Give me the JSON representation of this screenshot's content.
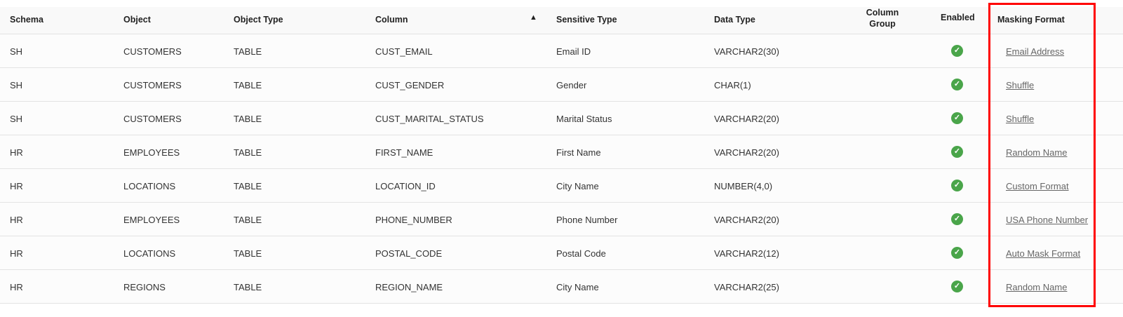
{
  "headers": {
    "schema": "Schema",
    "object": "Object",
    "object_type": "Object Type",
    "column": "Column",
    "sensitive_type": "Sensitive Type",
    "data_type": "Data Type",
    "column_group_1": "Column",
    "column_group_2": "Group",
    "enabled": "Enabled",
    "masking_format": "Masking Format"
  },
  "sort": {
    "column": "Column",
    "direction": "ascending",
    "icon": "▲"
  },
  "enabled_icon": "✓",
  "highlight_color": "#ff0000",
  "rows": [
    {
      "schema": "SH",
      "object": "CUSTOMERS",
      "object_type": "TABLE",
      "column": "CUST_EMAIL",
      "sensitive_type": "Email ID",
      "data_type": "VARCHAR2(30)",
      "column_group": "",
      "enabled": true,
      "masking_format": "Email Address"
    },
    {
      "schema": "SH",
      "object": "CUSTOMERS",
      "object_type": "TABLE",
      "column": "CUST_GENDER",
      "sensitive_type": "Gender",
      "data_type": "CHAR(1)",
      "column_group": "",
      "enabled": true,
      "masking_format": "Shuffle"
    },
    {
      "schema": "SH",
      "object": "CUSTOMERS",
      "object_type": "TABLE",
      "column": "CUST_MARITAL_STATUS",
      "sensitive_type": "Marital Status",
      "data_type": "VARCHAR2(20)",
      "column_group": "",
      "enabled": true,
      "masking_format": "Shuffle"
    },
    {
      "schema": "HR",
      "object": "EMPLOYEES",
      "object_type": "TABLE",
      "column": "FIRST_NAME",
      "sensitive_type": "First Name",
      "data_type": "VARCHAR2(20)",
      "column_group": "",
      "enabled": true,
      "masking_format": "Random Name"
    },
    {
      "schema": "HR",
      "object": "LOCATIONS",
      "object_type": "TABLE",
      "column": "LOCATION_ID",
      "sensitive_type": "City Name",
      "data_type": "NUMBER(4,0)",
      "column_group": "",
      "enabled": true,
      "masking_format": "Custom Format"
    },
    {
      "schema": "HR",
      "object": "EMPLOYEES",
      "object_type": "TABLE",
      "column": "PHONE_NUMBER",
      "sensitive_type": "Phone Number",
      "data_type": "VARCHAR2(20)",
      "column_group": "",
      "enabled": true,
      "masking_format": "USA Phone Number"
    },
    {
      "schema": "HR",
      "object": "LOCATIONS",
      "object_type": "TABLE",
      "column": "POSTAL_CODE",
      "sensitive_type": "Postal Code",
      "data_type": "VARCHAR2(12)",
      "column_group": "",
      "enabled": true,
      "masking_format": "Auto Mask Format"
    },
    {
      "schema": "HR",
      "object": "REGIONS",
      "object_type": "TABLE",
      "column": "REGION_NAME",
      "sensitive_type": "City Name",
      "data_type": "VARCHAR2(25)",
      "column_group": "",
      "enabled": true,
      "masking_format": "Random Name"
    }
  ]
}
